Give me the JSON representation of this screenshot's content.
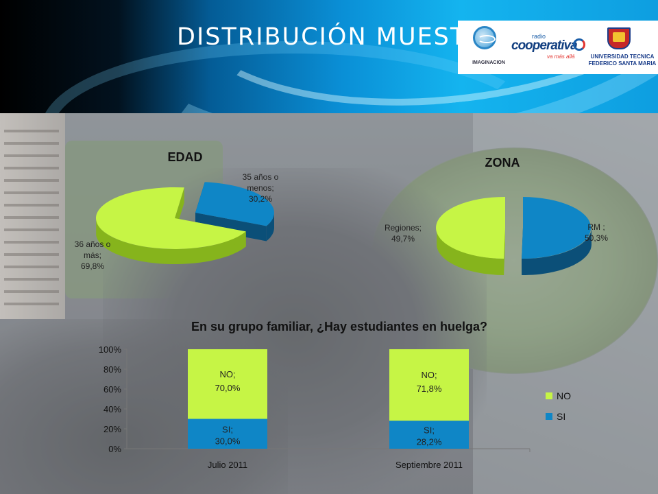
{
  "slide": {
    "title": "DISTRIBUCIÓN MUESTRA"
  },
  "logos": {
    "imaginacion": "IMAGINACION",
    "cooperativa_radio": "radio",
    "cooperativa_name": "cooperativa",
    "cooperativa_tagline": "va más allá",
    "utfsm_line1": "UNIVERSIDAD TECNICA",
    "utfsm_line2": "FEDERICO SANTA MARIA"
  },
  "colors": {
    "green": "#c6f545",
    "green_dark": "#86b41c",
    "blue": "#0f86c6",
    "blue_dark": "#0b4f78"
  },
  "chart_data": [
    {
      "type": "pie",
      "title": "EDAD",
      "slices": [
        {
          "label_lines": [
            "35 años o",
            "menos;",
            "30,2%"
          ],
          "value": 30.2
        },
        {
          "label_lines": [
            "36 años o",
            "más;",
            "69,8%"
          ],
          "value": 69.8
        }
      ]
    },
    {
      "type": "pie",
      "title": "ZONA",
      "slices": [
        {
          "label_lines": [
            "RM ;",
            "50,3%"
          ],
          "value": 50.3
        },
        {
          "label_lines": [
            "Regiones;",
            "49,7%"
          ],
          "value": 49.7
        }
      ]
    },
    {
      "type": "bar",
      "stacked": true,
      "title": "En su grupo familiar, ¿Hay estudiantes en huelga?",
      "categories": [
        "Julio 2011",
        "Septiembre 2011"
      ],
      "series": [
        {
          "name": "SI",
          "values": [
            30.0,
            28.2
          ],
          "labels": [
            [
              "SI;",
              "30,0%"
            ],
            [
              "SI;",
              "28,2%"
            ]
          ]
        },
        {
          "name": "NO",
          "values": [
            70.0,
            71.8
          ],
          "labels": [
            [
              "NO;",
              "70,0%"
            ],
            [
              "NO;",
              "71,8%"
            ]
          ]
        }
      ],
      "yticks": [
        "0%",
        "20%",
        "40%",
        "60%",
        "80%",
        "100%"
      ],
      "ylim": [
        0,
        100
      ],
      "legend": [
        "NO",
        "SI"
      ],
      "legend_position": "right"
    }
  ]
}
